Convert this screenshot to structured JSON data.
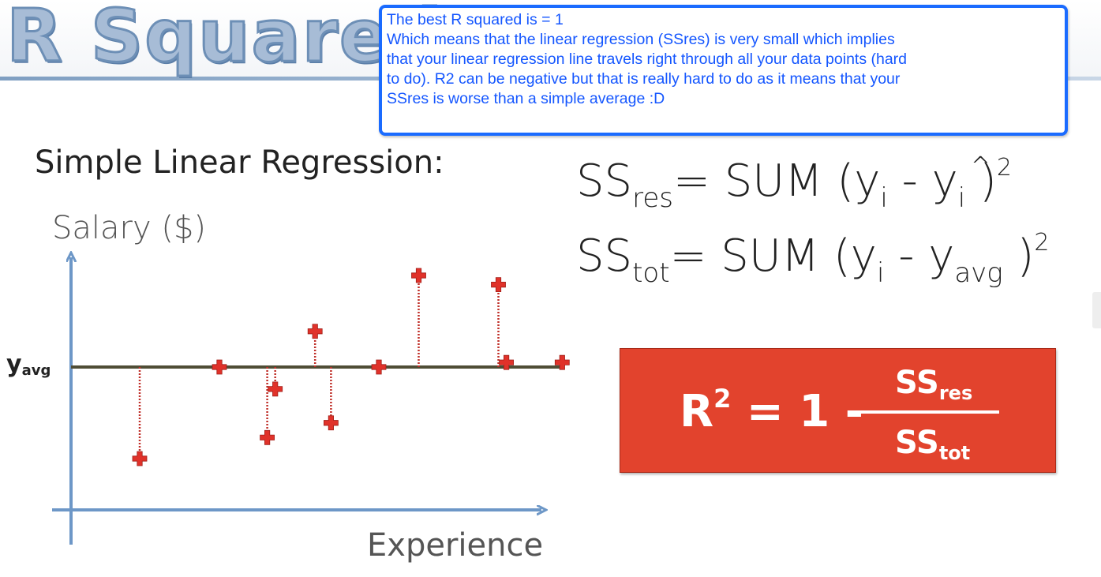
{
  "title": "R Squared",
  "callout": {
    "lines": [
      "The best R squared is = 1",
      "Which means that the linear regression (SSres) is very small which implies",
      "that your linear regression line travels right through all your data points (hard",
      "to do). R2 can be negative but that is really hard to do as it means that your",
      "SSres is worse than a simple average :D"
    ]
  },
  "subtitle": "Simple Linear Regression:",
  "axis": {
    "y_label": "Salary ($)",
    "x_label": "Experience"
  },
  "y_avg": {
    "base": "y",
    "sub": "avg"
  },
  "formulas": {
    "ss_res": {
      "ss": "SS",
      "sub": "res",
      "rhs_a": "= SUM  (y",
      "i": "i",
      "minus": "  -  y",
      "hat": "^",
      "close": " )",
      "sup": "2"
    },
    "ss_tot": {
      "ss": "SS",
      "sub": "tot",
      "rhs_a": "= SUM  (y",
      "i": "i",
      "minus": "  -  y",
      "avg": "avg",
      "close": " )",
      "sup": "2"
    }
  },
  "r2": {
    "lhs": "R",
    "sup": "2",
    "eq": " = 1 - ",
    "num": "SS",
    "num_sub": "res",
    "den": "SS",
    "den_sub": "tot"
  },
  "colors": {
    "axis": "#6d97c7",
    "avg_line": "#4f4d35",
    "point": "#e0322a",
    "residual": "#c0302a",
    "box": "#e2432d",
    "callout_text": "#1456ff"
  },
  "chart_data": {
    "type": "scatter",
    "xlabel": "Experience",
    "ylabel": "Salary ($)",
    "y_avg": 0,
    "points": [
      {
        "x": 1.0,
        "y": -1.0
      },
      {
        "x": 2.0,
        "y": 0.0
      },
      {
        "x": 2.6,
        "y": -0.77
      },
      {
        "x": 2.7,
        "y": -0.24
      },
      {
        "x": 3.2,
        "y": 0.39
      },
      {
        "x": 3.4,
        "y": -0.61
      },
      {
        "x": 4.0,
        "y": 0.0
      },
      {
        "x": 4.5,
        "y": 1.0
      },
      {
        "x": 5.5,
        "y": 0.9
      },
      {
        "x": 5.6,
        "y": 0.05
      },
      {
        "x": 6.3,
        "y": 0.05
      }
    ],
    "residual_segments_for": [
      0,
      2,
      3,
      4,
      5,
      7,
      8
    ]
  }
}
